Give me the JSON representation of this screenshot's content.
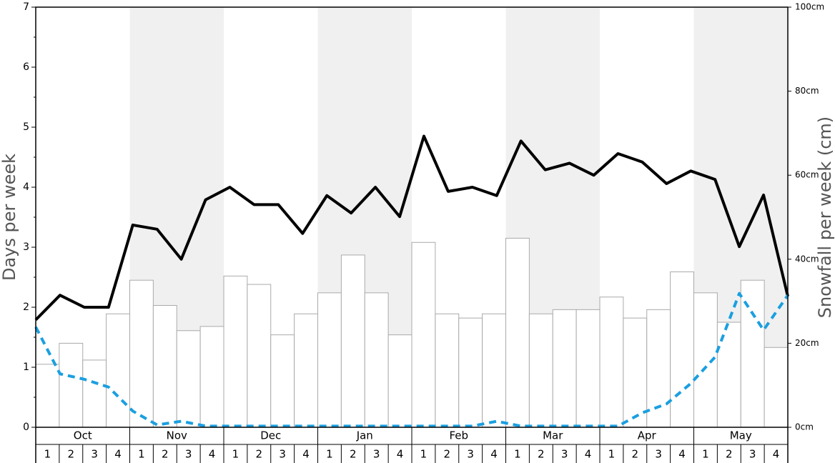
{
  "chart_data": {
    "type": "bar",
    "ylabel": "Days per week",
    "y2label": "Snowfall per week (cm)",
    "months": [
      "Oct",
      "Nov",
      "Dec",
      "Jan",
      "Feb",
      "Mar",
      "Apr",
      "May"
    ],
    "categories": [
      "1",
      "2",
      "3",
      "4",
      "1",
      "2",
      "3",
      "4",
      "1",
      "2",
      "3",
      "4",
      "1",
      "2",
      "3",
      "4",
      "1",
      "2",
      "3",
      "4",
      "1",
      "2",
      "3",
      "4",
      "1",
      "2",
      "3",
      "4",
      "1",
      "2",
      "3",
      "4"
    ],
    "ylim": [
      0,
      7
    ],
    "yticks": [
      0,
      1,
      2,
      3,
      4,
      5,
      6,
      7
    ],
    "y2lim": [
      0,
      100
    ],
    "y2ticks": [
      {
        "value": 0,
        "label": "0cm"
      },
      {
        "value": 20,
        "label": "20cm"
      },
      {
        "value": 40,
        "label": "40cm"
      },
      {
        "value": 60,
        "label": "60cm"
      },
      {
        "value": 80,
        "label": "80cm"
      },
      {
        "value": 100,
        "label": "100cm"
      }
    ],
    "series": [
      {
        "type": "bar",
        "axis": "y2",
        "color": "#ffffff",
        "values": [
          15,
          20,
          16,
          27,
          35,
          29,
          23,
          24,
          36,
          34,
          22,
          27,
          32,
          41,
          32,
          22,
          44,
          27,
          26,
          27,
          45,
          27,
          28,
          28,
          31,
          26,
          28,
          37,
          32,
          25,
          35,
          19
        ]
      },
      {
        "type": "line",
        "color": "#000000",
        "dashed": false,
        "values": [
          1.79,
          2.2,
          2.0,
          2.0,
          3.37,
          3.3,
          2.8,
          3.79,
          4.0,
          3.71,
          3.71,
          3.23,
          3.86,
          3.57,
          4.0,
          3.51,
          4.85,
          3.93,
          4.0,
          3.86,
          4.77,
          4.29,
          4.4,
          4.2,
          4.56,
          4.42,
          4.06,
          4.27,
          4.13,
          3.01,
          3.87,
          2.18
        ]
      },
      {
        "type": "line",
        "color": "#1a9fe0",
        "dashed": true,
        "values": [
          1.67,
          0.89,
          0.8,
          0.67,
          0.27,
          0.04,
          0.1,
          0.02,
          0.02,
          0.02,
          0.02,
          0.02,
          0.02,
          0.02,
          0.02,
          0.02,
          0.02,
          0.02,
          0.02,
          0.1,
          0.02,
          0.02,
          0.02,
          0.02,
          0.02,
          0.24,
          0.39,
          0.73,
          1.17,
          2.23,
          1.62,
          2.2
        ]
      }
    ]
  }
}
